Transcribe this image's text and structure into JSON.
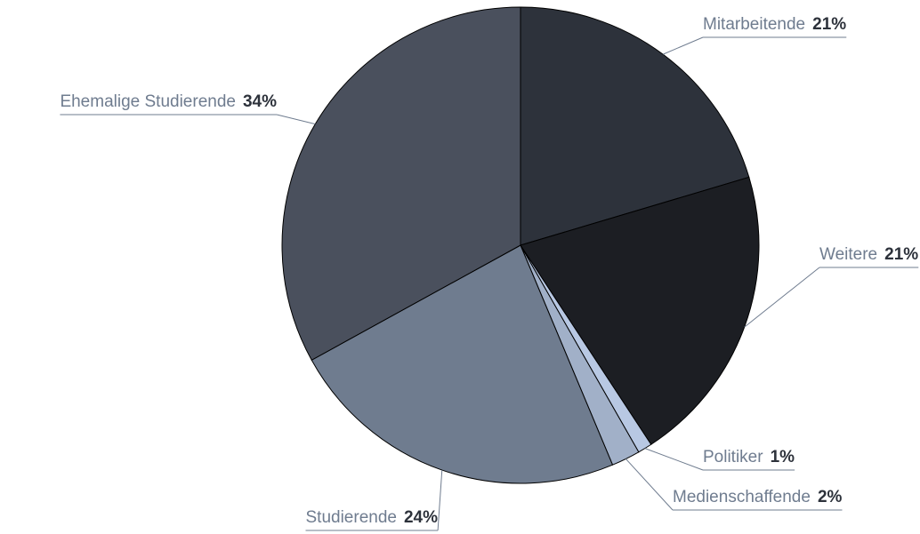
{
  "chart_data": {
    "type": "pie",
    "categories": [
      "Mitarbeitende",
      "Weitere",
      "Politiker",
      "Medienschaffende",
      "Studierende",
      "Ehemalige Studierende"
    ],
    "values": [
      21,
      21,
      1,
      2,
      24,
      34
    ],
    "value_labels": [
      "21%",
      "21%",
      "1%",
      "2%",
      "24%",
      "34%"
    ],
    "colors": [
      "#2d323b",
      "#1c1e23",
      "#b8c8e3",
      "#a1b0c8",
      "#6f7c8f",
      "#4a505d"
    ]
  }
}
